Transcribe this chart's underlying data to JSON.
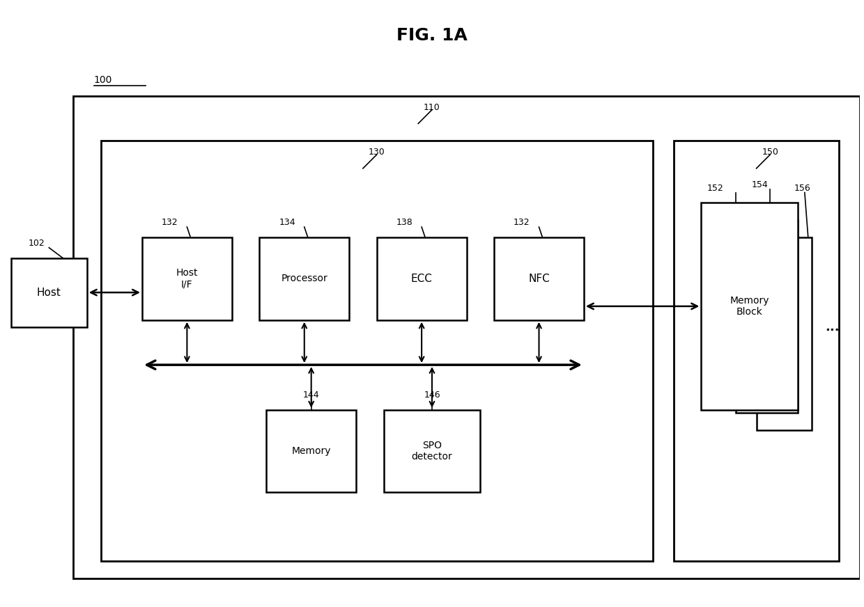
{
  "title": "FIG. 1A",
  "background_color": "#ffffff",
  "fig_width": 12.4,
  "fig_height": 8.72,
  "label_100": "100",
  "label_110": "110",
  "label_130": "130",
  "label_150": "150",
  "label_102": "102",
  "label_132a": "132",
  "label_134": "134",
  "label_138": "138",
  "label_132b": "132",
  "label_144": "144",
  "label_146": "146",
  "label_152": "152",
  "label_154": "154",
  "label_156": "156",
  "box_host_text": "Host",
  "box_hostif_text": "Host\nI/F",
  "box_processor_text": "Processor",
  "box_ecc_text": "ECC",
  "box_nfc_text": "NFC",
  "box_memory_text": "Memory",
  "box_spo_text": "SPO\ndetector",
  "box_memblock_text": "Memory\nBlock",
  "dots_text": "..."
}
